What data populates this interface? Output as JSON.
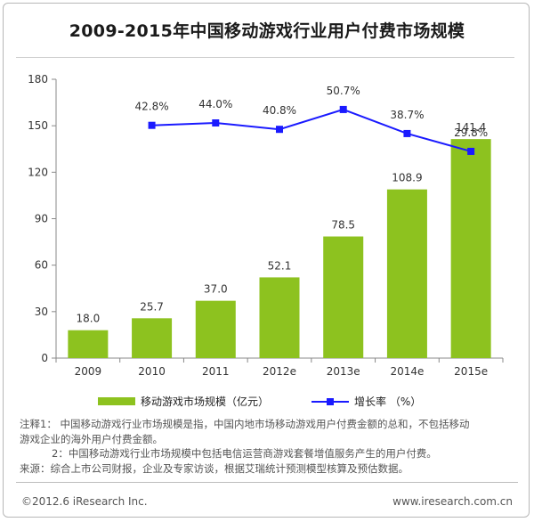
{
  "colors": {
    "bar": "#8dc21f",
    "line": "#1a1aff",
    "axis": "#888888",
    "text": "#333333"
  },
  "chart_data": {
    "type": "bar",
    "title": "2009-2015年中国移动游戏行业用户付费市场规模",
    "categories": [
      "2009",
      "2010",
      "2011",
      "2012e",
      "2013e",
      "2014e",
      "2015e"
    ],
    "ylim": [
      0,
      180
    ],
    "yticks": [
      0,
      30,
      60,
      90,
      120,
      150,
      180
    ],
    "series": [
      {
        "name": "移动游戏市场规模（亿元）",
        "type": "bar",
        "values": [
          18.0,
          25.7,
          37.0,
          52.1,
          78.5,
          108.9,
          141.4
        ],
        "labels": [
          "18.0",
          "25.7",
          "37.0",
          "52.1",
          "78.5",
          "108.9",
          "141.4"
        ]
      },
      {
        "name": "增长率 （%）",
        "type": "line",
        "values": [
          null,
          42.8,
          44.0,
          40.8,
          50.7,
          38.7,
          29.8
        ],
        "labels": [
          "",
          "42.8%",
          "44.0%",
          "40.8%",
          "50.7%",
          "38.7%",
          "29.8%"
        ],
        "axis_note": "growth rate plotted on a hidden secondary axis"
      }
    ]
  },
  "legend": {
    "bar_label": "移动游戏市场规模（亿元）",
    "line_label": "增长率 （%）"
  },
  "notes": {
    "note1": "注释1： 中国移动游戏行业市场规模是指，中国内地市场移动游戏用户付费金额的总和，不包括移动",
    "note1b": "游戏企业的海外用户付费金额。",
    "note2": "2：中国移动游戏行业市场规模中包括电信运营商游戏套餐增值服务产生的用户付费。",
    "source": "来源：综合上市公司财报，企业及专家访谈，根据艾瑞统计预测模型核算及预估数据。"
  },
  "footer": {
    "copyright": "©2012.6 iResearch Inc.",
    "website": "www.iresearch.com.cn"
  }
}
